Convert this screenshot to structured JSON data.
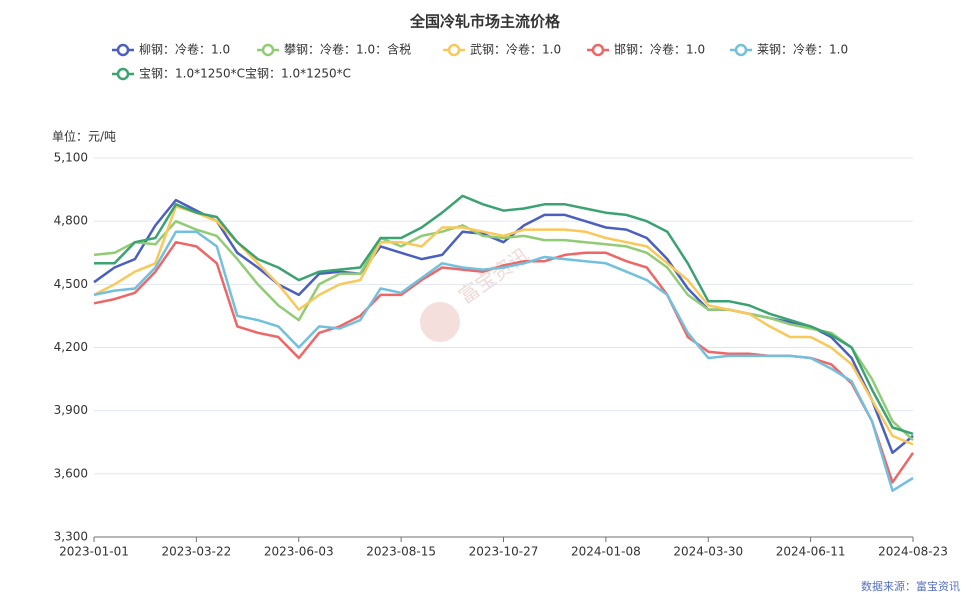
{
  "chart_data": {
    "type": "line",
    "title": "全国冷轧市场主流价格",
    "unit_label": "单位：元/吨",
    "source": "数据来源：富宝资讯",
    "watermark": "富宝资讯",
    "categories": [
      "2023-01-01",
      null,
      null,
      null,
      null,
      "2023-03-22",
      null,
      null,
      null,
      null,
      "2023-06-03",
      null,
      null,
      null,
      null,
      "2023-08-15",
      null,
      null,
      null,
      null,
      "2023-10-27",
      null,
      null,
      null,
      null,
      "2024-01-08",
      null,
      null,
      null,
      null,
      "2024-03-30",
      null,
      null,
      null,
      null,
      "2024-06-11",
      null,
      null,
      null,
      null,
      "2024-08-23"
    ],
    "ylim": [
      3300,
      5100
    ],
    "yticks": [
      {
        "value": 3300,
        "label": "3,300"
      },
      {
        "value": 3600,
        "label": "3,600"
      },
      {
        "value": 3900,
        "label": "3,900"
      },
      {
        "value": 4200,
        "label": "4,200"
      },
      {
        "value": 4500,
        "label": "4,500"
      },
      {
        "value": 4800,
        "label": "4,800"
      },
      {
        "value": 5100,
        "label": "5,100"
      }
    ],
    "grid": true,
    "series": [
      {
        "name": "柳钢：冷卷：1.0",
        "color": "#4a5fc1",
        "values": [
          4510,
          4580,
          4620,
          4780,
          4900,
          4850,
          4800,
          4650,
          4580,
          4500,
          4450,
          4550,
          4560,
          4550,
          4680,
          4650,
          4620,
          4640,
          4750,
          4740,
          4700,
          4780,
          4830,
          4830,
          4800,
          4770,
          4760,
          4720,
          4620,
          4480,
          4380,
          4380,
          4360,
          4340,
          4320,
          4300,
          4250,
          4150,
          3950,
          3700,
          3780
        ]
      },
      {
        "name": "攀钢：冷卷：1.0：含税",
        "color": "#91cc75",
        "values": [
          4640,
          4650,
          4700,
          4690,
          4800,
          4760,
          4730,
          4620,
          4500,
          4400,
          4330,
          4500,
          4550,
          4550,
          4720,
          4680,
          4730,
          4750,
          4780,
          4730,
          4720,
          4730,
          4710,
          4710,
          4700,
          4690,
          4680,
          4650,
          4580,
          4450,
          4380,
          4380,
          4360,
          4340,
          4310,
          4290,
          4270,
          4200,
          4050,
          3850,
          3760
        ]
      },
      {
        "name": "武钢：冷卷：1.0",
        "color": "#fac858",
        "values": [
          4450,
          4500,
          4560,
          4600,
          4870,
          4840,
          4800,
          4700,
          4600,
          4500,
          4380,
          4450,
          4500,
          4520,
          4700,
          4700,
          4680,
          4770,
          4770,
          4750,
          4730,
          4760,
          4760,
          4760,
          4750,
          4720,
          4700,
          4680,
          4600,
          4520,
          4400,
          4380,
          4360,
          4300,
          4250,
          4250,
          4200,
          4120,
          3950,
          3780,
          3740
        ]
      },
      {
        "name": "邯钢：冷卷：1.0",
        "color": "#ee6666",
        "values": [
          4410,
          4430,
          4460,
          4560,
          4700,
          4680,
          4600,
          4300,
          4270,
          4250,
          4150,
          4270,
          4300,
          4350,
          4450,
          4450,
          4520,
          4580,
          4570,
          4560,
          4590,
          4610,
          4610,
          4640,
          4650,
          4650,
          4610,
          4580,
          4450,
          4250,
          4180,
          4170,
          4170,
          4160,
          4160,
          4150,
          4120,
          4030,
          3850,
          3560,
          3700
        ]
      },
      {
        "name": "莱钢：冷卷：1.0",
        "color": "#73c0de",
        "values": [
          4450,
          4470,
          4480,
          4580,
          4750,
          4750,
          4680,
          4350,
          4330,
          4300,
          4200,
          4300,
          4290,
          4330,
          4480,
          4460,
          4530,
          4600,
          4580,
          4570,
          4580,
          4600,
          4630,
          4620,
          4610,
          4600,
          4560,
          4520,
          4450,
          4270,
          4150,
          4160,
          4160,
          4160,
          4160,
          4150,
          4100,
          4040,
          3850,
          3520,
          3580
        ]
      },
      {
        "name": "宝钢：1.0*1250*C宝钢：1.0*1250*C",
        "color": "#3ba272",
        "values": [
          4600,
          4600,
          4700,
          4720,
          4880,
          4840,
          4820,
          4700,
          4620,
          4580,
          4520,
          4560,
          4570,
          4580,
          4720,
          4720,
          4770,
          4840,
          4920,
          4880,
          4850,
          4860,
          4880,
          4880,
          4860,
          4840,
          4830,
          4800,
          4750,
          4600,
          4420,
          4420,
          4400,
          4360,
          4330,
          4300,
          4260,
          4200,
          4000,
          3820,
          3790
        ]
      }
    ]
  }
}
